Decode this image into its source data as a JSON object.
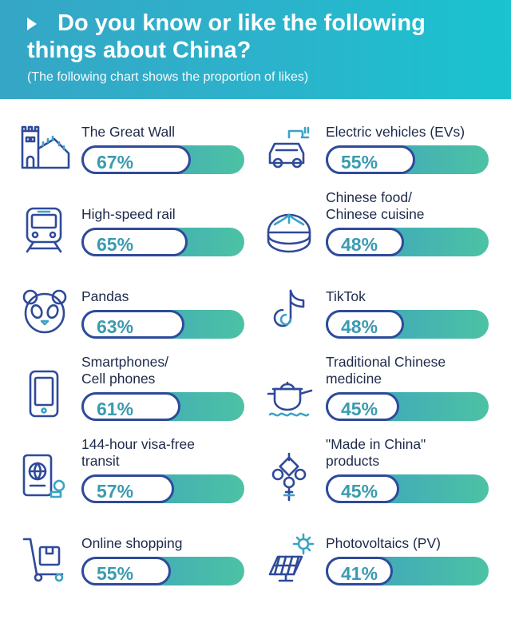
{
  "header": {
    "title": "Do you know or like the following things about China?",
    "subtitle": "(The following chart shows the proportion of likes)"
  },
  "colors": {
    "header_start": "#36a6c6",
    "header_end": "#19c3cf",
    "bar_start": "#3c9fc3",
    "bar_end": "#4cc2a4",
    "outline": "#2f4a9a",
    "percent_text": "#3a9bb0"
  },
  "chart_data": {
    "type": "bar",
    "title": "Do you know or like the following things about China?",
    "subtitle": "(The following chart shows the proportion of likes)",
    "unit": "%",
    "ylim": [
      0,
      100
    ],
    "items": [
      {
        "label": "The Great Wall",
        "value": 67,
        "value_label": "67%",
        "icon": "great-wall-icon"
      },
      {
        "label": "Electric vehicles (EVs)",
        "value": 55,
        "value_label": "55%",
        "icon": "electric-car-icon"
      },
      {
        "label": "High-speed rail",
        "value": 65,
        "value_label": "65%",
        "icon": "train-icon"
      },
      {
        "label": "Chinese food/\nChinese cuisine",
        "value": 48,
        "value_label": "48%",
        "icon": "steamed-bun-icon"
      },
      {
        "label": "Pandas",
        "value": 63,
        "value_label": "63%",
        "icon": "panda-icon"
      },
      {
        "label": "TikTok",
        "value": 48,
        "value_label": "48%",
        "icon": "tiktok-icon"
      },
      {
        "label": "Smartphones/\nCell phones",
        "value": 61,
        "value_label": "61%",
        "icon": "smartphone-icon"
      },
      {
        "label": "Traditional Chinese\nmedicine",
        "value": 45,
        "value_label": "45%",
        "icon": "medicine-pot-icon"
      },
      {
        "label": "144-hour visa-free\ntransit",
        "value": 57,
        "value_label": "57%",
        "icon": "passport-icon"
      },
      {
        "label": "\"Made in China\"\nproducts",
        "value": 45,
        "value_label": "45%",
        "icon": "chinese-knot-icon"
      },
      {
        "label": "Online shopping",
        "value": 55,
        "value_label": "55%",
        "icon": "delivery-cart-icon"
      },
      {
        "label": "Photovoltaics (PV)",
        "value": 41,
        "value_label": "41%",
        "icon": "solar-panel-icon"
      }
    ]
  }
}
